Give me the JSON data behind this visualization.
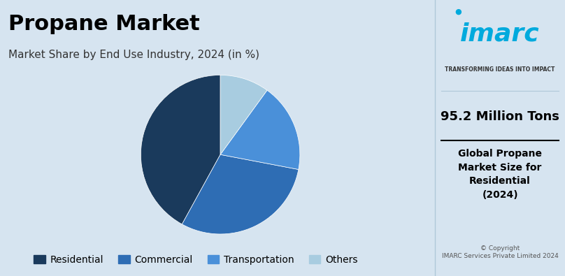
{
  "title": "Propane Market",
  "subtitle": "Market Share by End Use Industry, 2024 (in %)",
  "labels": [
    "Residential",
    "Commercial",
    "Transportation",
    "Others"
  ],
  "values": [
    42,
    30,
    18,
    10
  ],
  "colors": [
    "#1a3a5c",
    "#2e6db4",
    "#4a90d9",
    "#a8cce0"
  ],
  "startangle": 90,
  "bg_color": "#d6e4f0",
  "right_bg_color": "#e8f2fa",
  "title_fontsize": 22,
  "subtitle_fontsize": 11,
  "legend_fontsize": 10,
  "right_title": "95.2 Million Tons",
  "right_subtitle": "Global Propane\nMarket Size for\nResidential\n(2024)",
  "copyright": "© Copyright\nIMARC Services Private Limited 2024",
  "imarc_text": "imarc",
  "imarc_tagline": "TRANSFORMING IDEAS INTO IMPACT"
}
